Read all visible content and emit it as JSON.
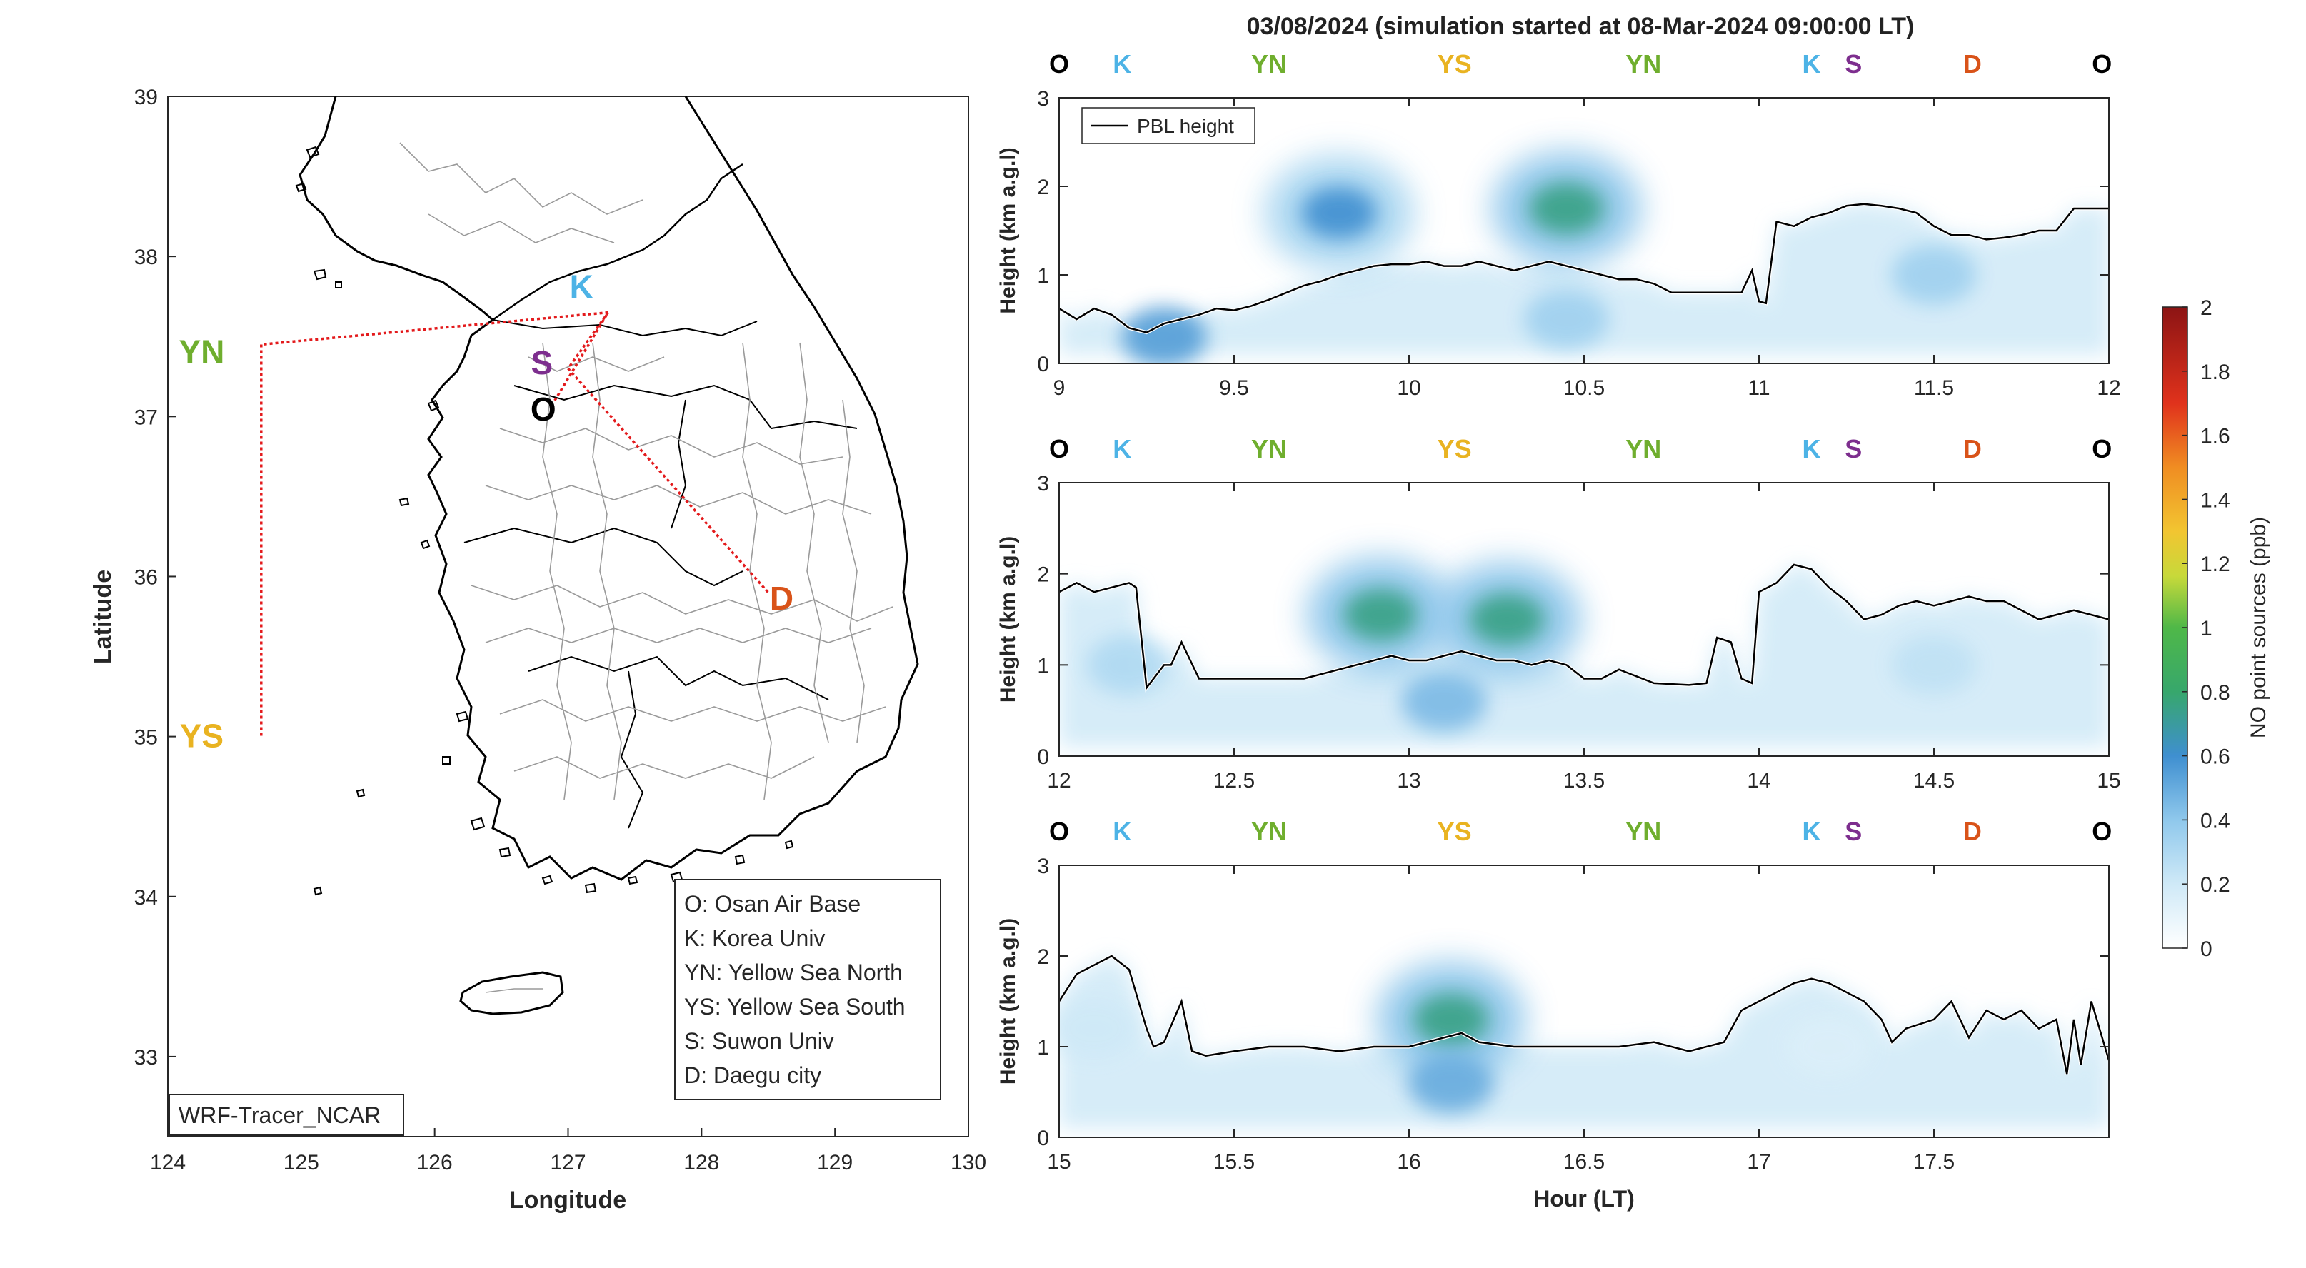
{
  "figure_title": "03/08/2024 (simulation started at 08-Mar-2024 09:00:00 LT)",
  "colors": {
    "O": "#000000",
    "K": "#4db3e6",
    "YN": "#6fae2e",
    "YS": "#e9b321",
    "S": "#7d2e8e",
    "D": "#d95319",
    "route": "#e31a1c",
    "pbl": "#000000"
  },
  "map": {
    "xlabel": "Longitude",
    "ylabel": "Latitude",
    "xlim": [
      124,
      130
    ],
    "ylim": [
      32.5,
      39
    ],
    "xticks": [
      "124",
      "125",
      "126",
      "127",
      "128",
      "129",
      "130"
    ],
    "yticks": [
      "33",
      "34",
      "35",
      "36",
      "37",
      "38",
      "39"
    ],
    "model_label": "WRF-Tracer_NCAR",
    "sites": [
      {
        "code": "O",
        "lon": 126.9,
        "lat": 37.1
      },
      {
        "code": "K",
        "lon": 127.1,
        "lat": 37.65
      },
      {
        "code": "YN",
        "lon": 124.5,
        "lat": 37.4
      },
      {
        "code": "YS",
        "lon": 124.5,
        "lat": 35.0
      },
      {
        "code": "S",
        "lon": 126.9,
        "lat": 37.3
      },
      {
        "code": "D",
        "lon": 128.6,
        "lat": 35.9
      }
    ],
    "legend": [
      "O: Osan Air Base",
      "K: Korea Univ",
      "YN: Yellow Sea North",
      "YS: Yellow Sea South",
      "S: Suwon Univ",
      "D: Daegu city"
    ]
  },
  "chart_data": [
    {
      "type": "heatmap",
      "xlim": [
        9,
        12
      ],
      "ylim": [
        0,
        3
      ],
      "xticks": [
        "9",
        "9.5",
        "10",
        "10.5",
        "11",
        "11.5",
        "12"
      ],
      "yticks": [
        "0",
        "1",
        "2",
        "3"
      ],
      "ylabel": "Height (km a.g.l)",
      "legend": "PBL height",
      "site_labels": [
        {
          "code": "O",
          "x": 9.0
        },
        {
          "code": "K",
          "x": 9.18
        },
        {
          "code": "YN",
          "x": 9.6
        },
        {
          "code": "YS",
          "x": 10.13
        },
        {
          "code": "YN",
          "x": 10.67
        },
        {
          "code": "K",
          "x": 11.15
        },
        {
          "code": "S",
          "x": 11.27
        },
        {
          "code": "D",
          "x": 11.61
        },
        {
          "code": "O",
          "x": 11.98
        }
      ],
      "pbl_height": {
        "x": [
          9.0,
          9.05,
          9.1,
          9.15,
          9.2,
          9.25,
          9.3,
          9.35,
          9.4,
          9.45,
          9.5,
          9.55,
          9.6,
          9.65,
          9.7,
          9.75,
          9.8,
          9.85,
          9.9,
          9.95,
          10.0,
          10.05,
          10.1,
          10.15,
          10.2,
          10.25,
          10.3,
          10.35,
          10.4,
          10.45,
          10.5,
          10.55,
          10.6,
          10.65,
          10.7,
          10.75,
          10.8,
          10.85,
          10.9,
          10.95,
          10.98,
          11.0,
          11.02,
          11.05,
          11.1,
          11.15,
          11.2,
          11.25,
          11.3,
          11.35,
          11.4,
          11.45,
          11.5,
          11.55,
          11.6,
          11.65,
          11.7,
          11.75,
          11.8,
          11.85,
          11.9,
          11.95,
          12.0
        ],
        "y": [
          0.62,
          0.5,
          0.62,
          0.55,
          0.4,
          0.35,
          0.45,
          0.5,
          0.55,
          0.62,
          0.6,
          0.65,
          0.72,
          0.8,
          0.88,
          0.93,
          1.0,
          1.05,
          1.1,
          1.12,
          1.12,
          1.15,
          1.1,
          1.1,
          1.15,
          1.1,
          1.05,
          1.1,
          1.15,
          1.1,
          1.05,
          1.0,
          0.95,
          0.95,
          0.9,
          0.8,
          0.8,
          0.8,
          0.8,
          0.8,
          1.05,
          0.7,
          0.68,
          1.6,
          1.55,
          1.65,
          1.7,
          1.78,
          1.8,
          1.78,
          1.75,
          1.7,
          1.55,
          1.45,
          1.45,
          1.4,
          1.42,
          1.45,
          1.5,
          1.5,
          1.75,
          1.75,
          1.75
        ]
      },
      "concentration_ppb": [
        {
          "x": 9.8,
          "y": 1.7,
          "value": 0.6
        },
        {
          "x": 10.45,
          "y": 1.75,
          "value": 0.75
        },
        {
          "x": 9.3,
          "y": 0.3,
          "value": 0.55
        },
        {
          "x": 10.45,
          "y": 0.5,
          "value": 0.35
        },
        {
          "x": 11.5,
          "y": 1.0,
          "value": 0.35
        }
      ]
    },
    {
      "type": "heatmap",
      "xlim": [
        12,
        15
      ],
      "ylim": [
        0,
        3
      ],
      "xticks": [
        "12",
        "12.5",
        "13",
        "13.5",
        "14",
        "14.5",
        "15"
      ],
      "yticks": [
        "0",
        "1",
        "2",
        "3"
      ],
      "ylabel": "Height (km a.g.l)",
      "site_labels": [
        {
          "code": "O",
          "x": 12.0
        },
        {
          "code": "K",
          "x": 12.18
        },
        {
          "code": "YN",
          "x": 12.6
        },
        {
          "code": "YS",
          "x": 13.13
        },
        {
          "code": "YN",
          "x": 13.67
        },
        {
          "code": "K",
          "x": 14.15
        },
        {
          "code": "S",
          "x": 14.27
        },
        {
          "code": "D",
          "x": 14.61
        },
        {
          "code": "O",
          "x": 14.98
        }
      ],
      "pbl_height": {
        "x": [
          12.0,
          12.05,
          12.1,
          12.15,
          12.2,
          12.22,
          12.25,
          12.3,
          12.32,
          12.35,
          12.4,
          12.5,
          12.6,
          12.7,
          12.8,
          12.85,
          12.9,
          12.95,
          13.0,
          13.05,
          13.1,
          13.15,
          13.2,
          13.25,
          13.3,
          13.35,
          13.4,
          13.45,
          13.5,
          13.55,
          13.6,
          13.7,
          13.8,
          13.85,
          13.88,
          13.92,
          13.95,
          13.98,
          14.0,
          14.05,
          14.1,
          14.15,
          14.2,
          14.25,
          14.3,
          14.35,
          14.4,
          14.45,
          14.5,
          14.55,
          14.6,
          14.65,
          14.7,
          14.75,
          14.8,
          14.85,
          14.9,
          14.95,
          15.0
        ],
        "y": [
          1.8,
          1.9,
          1.8,
          1.85,
          1.9,
          1.85,
          0.75,
          1.0,
          1.0,
          1.25,
          0.85,
          0.85,
          0.85,
          0.85,
          0.95,
          1.0,
          1.05,
          1.1,
          1.05,
          1.05,
          1.1,
          1.15,
          1.1,
          1.05,
          1.05,
          1.0,
          1.05,
          1.0,
          0.85,
          0.85,
          0.95,
          0.8,
          0.78,
          0.8,
          1.3,
          1.25,
          0.85,
          0.8,
          1.8,
          1.9,
          2.1,
          2.05,
          1.85,
          1.7,
          1.5,
          1.55,
          1.65,
          1.7,
          1.65,
          1.7,
          1.75,
          1.7,
          1.7,
          1.6,
          1.5,
          1.55,
          1.6,
          1.55,
          1.5
        ]
      },
      "concentration_ppb": [
        {
          "x": 12.92,
          "y": 1.55,
          "value": 0.75
        },
        {
          "x": 13.28,
          "y": 1.5,
          "value": 0.75
        },
        {
          "x": 13.1,
          "y": 0.6,
          "value": 0.45
        },
        {
          "x": 12.2,
          "y": 1.0,
          "value": 0.3
        },
        {
          "x": 14.5,
          "y": 1.0,
          "value": 0.25
        }
      ]
    },
    {
      "type": "heatmap",
      "xlim": [
        15,
        18
      ],
      "ylim": [
        0,
        3
      ],
      "xticks": [
        "15",
        "15.5",
        "16",
        "16.5",
        "17",
        "17.5"
      ],
      "yticks": [
        "0",
        "1",
        "2",
        "3"
      ],
      "ylabel": "Height (km a.g.l)",
      "xlabel": "Hour (LT)",
      "site_labels": [
        {
          "code": "O",
          "x": 15.0
        },
        {
          "code": "K",
          "x": 15.18
        },
        {
          "code": "YN",
          "x": 15.6
        },
        {
          "code": "YS",
          "x": 16.13
        },
        {
          "code": "YN",
          "x": 16.67
        },
        {
          "code": "K",
          "x": 17.15
        },
        {
          "code": "S",
          "x": 17.27
        },
        {
          "code": "D",
          "x": 17.61
        },
        {
          "code": "O",
          "x": 17.98
        }
      ],
      "pbl_height": {
        "x": [
          15.0,
          15.05,
          15.1,
          15.15,
          15.2,
          15.25,
          15.27,
          15.3,
          15.35,
          15.38,
          15.42,
          15.5,
          15.6,
          15.7,
          15.8,
          15.9,
          16.0,
          16.05,
          16.1,
          16.15,
          16.2,
          16.3,
          16.4,
          16.5,
          16.6,
          16.7,
          16.8,
          16.9,
          16.95,
          17.0,
          17.05,
          17.1,
          17.15,
          17.2,
          17.25,
          17.3,
          17.35,
          17.38,
          17.42,
          17.5,
          17.55,
          17.6,
          17.65,
          17.7,
          17.75,
          17.8,
          17.85,
          17.88,
          17.9,
          17.92,
          17.95,
          18.0
        ],
        "y": [
          1.5,
          1.8,
          1.9,
          2.0,
          1.85,
          1.2,
          1.0,
          1.05,
          1.5,
          0.95,
          0.9,
          0.95,
          1.0,
          1.0,
          0.95,
          1.0,
          1.0,
          1.05,
          1.1,
          1.15,
          1.05,
          1.0,
          1.0,
          1.0,
          1.0,
          1.05,
          0.95,
          1.05,
          1.4,
          1.5,
          1.6,
          1.7,
          1.75,
          1.7,
          1.6,
          1.5,
          1.3,
          1.05,
          1.2,
          1.3,
          1.5,
          1.1,
          1.4,
          1.3,
          1.4,
          1.2,
          1.3,
          0.7,
          1.3,
          0.8,
          1.5,
          0.85
        ]
      },
      "concentration_ppb": [
        {
          "x": 16.12,
          "y": 1.3,
          "value": 0.75
        },
        {
          "x": 16.12,
          "y": 0.6,
          "value": 0.5
        },
        {
          "x": 15.1,
          "y": 1.2,
          "value": 0.2
        },
        {
          "x": 17.2,
          "y": 1.0,
          "value": 0.15
        }
      ]
    }
  ],
  "colorbar": {
    "label": "NO point sources (ppb)",
    "range": [
      0,
      2
    ],
    "ticks": [
      "0",
      "0.2",
      "0.4",
      "0.6",
      "0.8",
      "1",
      "1.2",
      "1.4",
      "1.6",
      "1.8",
      "2"
    ]
  }
}
